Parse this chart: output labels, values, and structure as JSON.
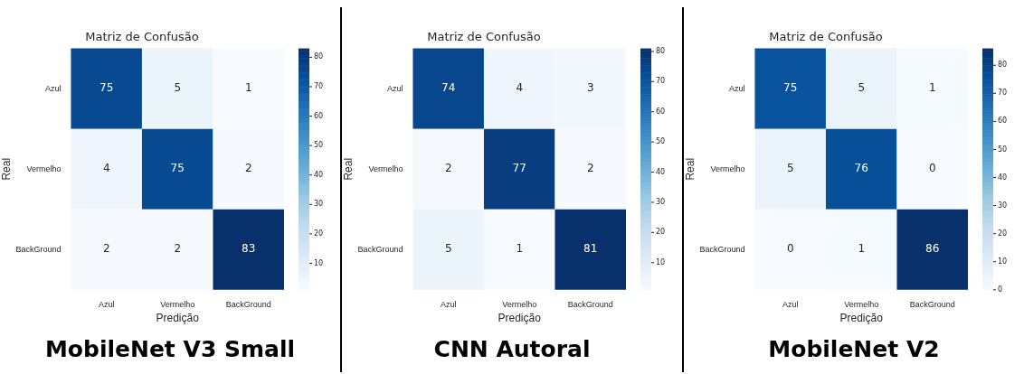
{
  "chart_data": [
    {
      "type": "heatmap",
      "title": "Matriz de Confusão",
      "xlabel": "Predição",
      "ylabel": "Real",
      "categories": [
        "Azul",
        "Vermelho",
        "BackGround"
      ],
      "y_categories": [
        "Azul",
        "Vermelho",
        "BackGround"
      ],
      "cells": [
        [
          75,
          5,
          1
        ],
        [
          4,
          75,
          2
        ],
        [
          2,
          2,
          83
        ]
      ],
      "clim": [
        1,
        83
      ],
      "cticks": [
        10,
        20,
        30,
        40,
        50,
        60,
        70,
        80
      ],
      "data_labels": true,
      "annotations": [
        "MobileNet V3 Small"
      ]
    },
    {
      "type": "heatmap",
      "title": "Matriz de Confusão",
      "xlabel": "Predição",
      "ylabel": "Real",
      "categories": [
        "Azul",
        "Vermelho",
        "BackGround"
      ],
      "y_categories": [
        "Azul",
        "Vermelho",
        "BackGround"
      ],
      "cells": [
        [
          74,
          4,
          3
        ],
        [
          2,
          77,
          2
        ],
        [
          5,
          1,
          81
        ]
      ],
      "clim": [
        1,
        81
      ],
      "cticks": [
        10,
        20,
        30,
        40,
        50,
        60,
        70,
        80
      ],
      "data_labels": true,
      "annotations": [
        "CNN Autoral"
      ]
    },
    {
      "type": "heatmap",
      "title": "Matriz de Confusão",
      "xlabel": "Predição",
      "ylabel": "Real",
      "categories": [
        "Azul",
        "Vermelho",
        "BackGround"
      ],
      "y_categories": [
        "Azul",
        "Vermelho",
        "BackGround"
      ],
      "cells": [
        [
          75,
          5,
          1
        ],
        [
          5,
          76,
          0
        ],
        [
          0,
          1,
          86
        ]
      ],
      "clim": [
        0,
        86
      ],
      "cticks": [
        0,
        10,
        20,
        30,
        40,
        50,
        60,
        70,
        80
      ],
      "data_labels": true,
      "annotations": [
        "MobileNet V2"
      ]
    }
  ]
}
